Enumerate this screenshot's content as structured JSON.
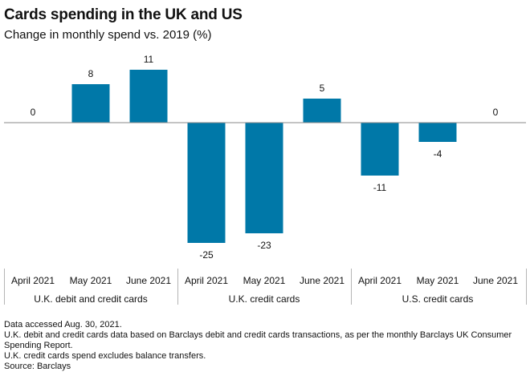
{
  "header": {
    "title": "Cards spending in the UK and US",
    "subtitle": "Change in monthly spend vs. 2019 (%)"
  },
  "chart_data": {
    "type": "bar",
    "title": "Cards spending in the UK and US",
    "subtitle": "Change in monthly spend vs. 2019 (%)",
    "xlabel": "",
    "ylabel": "",
    "ylim": [
      -27,
      13
    ],
    "grid": false,
    "categories": [
      "April 2021",
      "May 2021",
      "June 2021",
      "April 2021",
      "May 2021",
      "June 2021",
      "April 2021",
      "May 2021",
      "June 2021"
    ],
    "groups": [
      "U.K. debit and credit cards",
      "U.K. credit cards",
      "U.S. credit cards"
    ],
    "values": [
      0,
      8,
      11,
      -25,
      -23,
      5,
      -11,
      -4,
      0
    ],
    "bar_color": "#0078a8"
  },
  "footnotes": [
    "Data accessed Aug. 30, 2021.",
    "U.K. debit and credit cards data based on Barclays debit and credit cards transactions, as per the monthly Barclays UK Consumer Spending Report.",
    "U.K. credit cards spend excludes balance transfers.",
    "Source: Barclays"
  ]
}
